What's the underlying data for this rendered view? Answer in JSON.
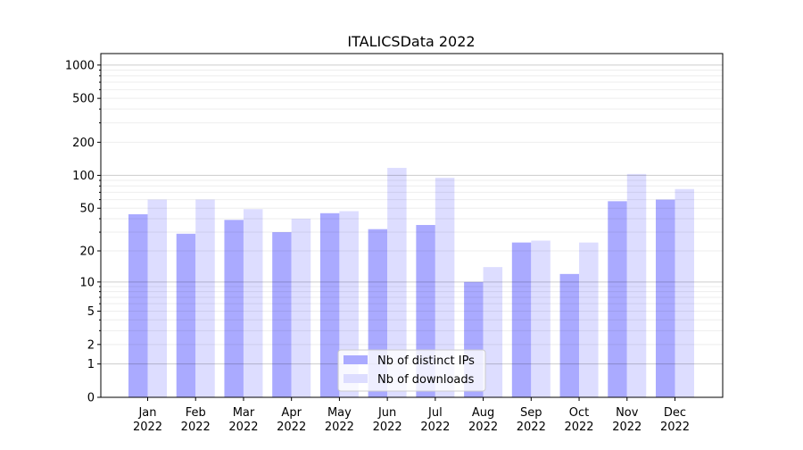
{
  "chart_data": {
    "type": "bar",
    "title": "ITALICSData 2022",
    "xlabel": "",
    "ylabel": "",
    "yscale": "log10(1+y)",
    "ylim": [
      0,
      1270
    ],
    "yticks": [
      0,
      1,
      2,
      5,
      10,
      20,
      50,
      100,
      200,
      500,
      1000
    ],
    "grid": true,
    "legend_placement": "lower center",
    "categories": [
      "Jan\n2022",
      "Feb\n2022",
      "Mar\n2022",
      "Apr\n2022",
      "May\n2022",
      "Jun\n2022",
      "Jul\n2022",
      "Aug\n2022",
      "Sep\n2022",
      "Oct\n2022",
      "Nov\n2022",
      "Dec\n2022"
    ],
    "series": [
      {
        "name": "Nb of distinct IPs",
        "color": "#aaaaff",
        "values": [
          44,
          29,
          39,
          30,
          45,
          32,
          35,
          10,
          24,
          12,
          58,
          60
        ]
      },
      {
        "name": "Nb of downloads",
        "color": "#ddddff",
        "values": [
          60,
          60,
          49,
          40,
          47,
          117,
          95,
          14,
          25,
          24,
          103,
          75
        ]
      }
    ]
  }
}
